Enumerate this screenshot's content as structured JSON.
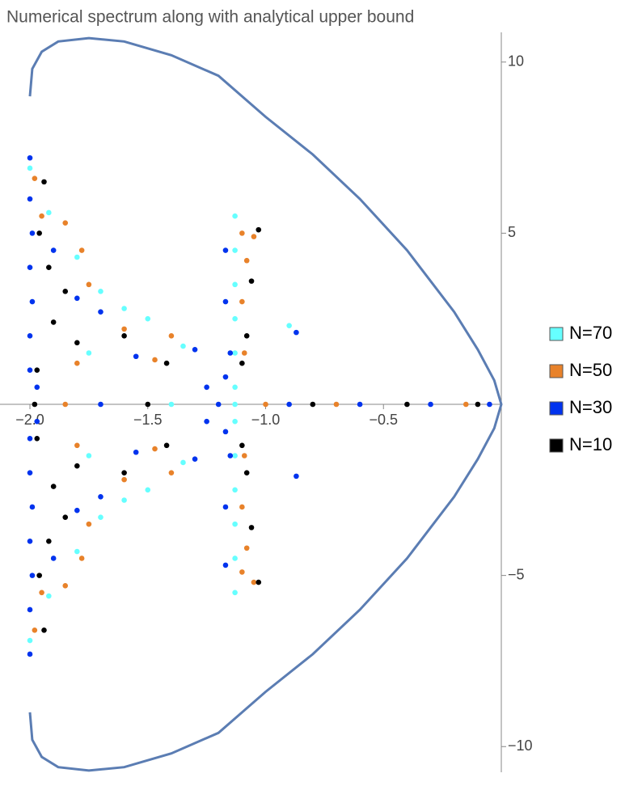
{
  "chart_data": {
    "type": "scatter",
    "title": "Numerical spectrum along with analytical upper bound",
    "xlim": [
      -2.127,
      0
    ],
    "ylim": [
      -10.75,
      10.75
    ],
    "xticks": [
      {
        "value": -2,
        "label": "−2.0"
      },
      {
        "value": -1.5,
        "label": "−1.5"
      },
      {
        "value": -1,
        "label": "−1.0"
      },
      {
        "value": -0.5,
        "label": "−0.5"
      }
    ],
    "yticks": [
      10,
      5,
      {
        "value": -5,
        "label": "−5"
      },
      {
        "value": -10,
        "label": "−10"
      }
    ],
    "bound": {
      "color": "#5b7db3",
      "x": [
        -2,
        -1.99,
        -1.95,
        -1.88,
        -1.75,
        -1.6,
        -1.4,
        -1.2,
        -1.0,
        -0.8,
        -0.6,
        -0.4,
        -0.2,
        -0.1,
        -0.03,
        0,
        -0.03,
        -0.1,
        -0.2,
        -0.4,
        -0.6,
        -0.8,
        -1.0,
        -1.2,
        -1.4,
        -1.6,
        -1.75,
        -1.88,
        -1.95,
        -1.99,
        -2
      ],
      "y": [
        9,
        9.8,
        10.3,
        10.6,
        10.7,
        10.6,
        10.2,
        9.6,
        8.4,
        7.3,
        6.0,
        4.5,
        2.7,
        1.6,
        0.7,
        0,
        -0.7,
        -1.6,
        -2.7,
        -4.5,
        -6.0,
        -7.3,
        -8.4,
        -9.6,
        -10.2,
        -10.6,
        -10.7,
        -10.6,
        -10.3,
        -9.8,
        -9
      ]
    },
    "series": [
      {
        "name": "N=70",
        "color": "#66ffff",
        "x": [
          -2.0,
          -2.0,
          -1.92,
          -1.92,
          -1.8,
          -1.8,
          -1.7,
          -1.7,
          -1.6,
          -1.6,
          -1.5,
          -1.5,
          -1.35,
          -1.35,
          -1.13,
          -1.13,
          -1.13,
          -1.13,
          -1.13,
          -1.13,
          -1.13,
          -1.13,
          -1.13,
          -1.13,
          -1.13,
          -1.13,
          -0.9,
          -1.75,
          -1.75,
          -1.4,
          -1.13
        ],
        "y": [
          6.9,
          -6.9,
          5.6,
          -5.6,
          4.3,
          -4.3,
          3.3,
          -3.3,
          2.8,
          -2.8,
          2.5,
          -2.5,
          1.7,
          -1.7,
          5.5,
          -5.5,
          4.5,
          -4.5,
          3.5,
          -3.5,
          2.5,
          -2.5,
          1.5,
          -1.5,
          0.5,
          -0.5,
          2.3,
          1.5,
          -1.5,
          0,
          0
        ]
      },
      {
        "name": "N=50",
        "color": "#e8822a",
        "x": [
          -1.98,
          -1.98,
          -1.95,
          -1.95,
          -1.85,
          -1.85,
          -1.78,
          -1.78,
          -1.75,
          -1.75,
          -1.6,
          -1.6,
          -1.4,
          -1.4,
          -1.47,
          -1.47,
          -1.1,
          -1.1,
          -1.08,
          -1.08,
          -1.1,
          -1.1,
          -1.09,
          -1.09,
          -1.05,
          -1.05,
          -1.8,
          -1.8,
          -1.0,
          -0.7,
          -0.15,
          -1.85
        ],
        "y": [
          6.6,
          -6.6,
          5.5,
          -5.5,
          5.3,
          -5.3,
          4.5,
          -4.5,
          3.5,
          -3.5,
          2.2,
          -2.2,
          2.0,
          -2.0,
          1.3,
          -1.3,
          5.0,
          -4.9,
          4.2,
          -4.2,
          3.0,
          -3.0,
          1.5,
          -1.5,
          4.9,
          -5.2,
          1.2,
          -1.2,
          0,
          0,
          0,
          0
        ]
      },
      {
        "name": "N=30",
        "color": "#0033ee",
        "x": [
          -2.0,
          -2.0,
          -2.0,
          -2.0,
          -1.99,
          -1.99,
          -2.0,
          -2.0,
          -1.99,
          -1.99,
          -2.0,
          -2.0,
          -2.0,
          -2.0,
          -1.97,
          -1.97,
          -1.9,
          -1.9,
          -1.8,
          -1.8,
          -1.7,
          -1.7,
          -1.55,
          -1.55,
          -1.3,
          -1.3,
          -1.15,
          -1.15,
          -1.17,
          -1.17,
          -1.17,
          -1.17,
          -1.17,
          -1.17,
          -0.87,
          -0.87,
          -1.25,
          -1.25,
          -1.2,
          -0.9,
          -0.6,
          -0.3,
          -1.7,
          -0.05
        ],
        "y": [
          7.2,
          -7.3,
          6.0,
          -6.0,
          5.0,
          -5.0,
          4.0,
          -4.0,
          3.0,
          -3.0,
          2.0,
          -2.0,
          1.0,
          -1.0,
          0.5,
          -0.5,
          4.5,
          -4.5,
          3.1,
          -3.1,
          2.7,
          -2.7,
          1.4,
          -1.4,
          1.6,
          -1.6,
          1.5,
          -1.5,
          4.5,
          -4.7,
          3.0,
          -3.0,
          0.8,
          -0.8,
          2.1,
          -2.1,
          0.5,
          -0.5,
          0,
          0,
          0,
          0,
          0,
          0
        ]
      },
      {
        "name": "N=10",
        "color": "#000000",
        "x": [
          -1.94,
          -1.94,
          -1.92,
          -1.92,
          -1.85,
          -1.85,
          -1.9,
          -1.9,
          -1.8,
          -1.8,
          -1.6,
          -1.6,
          -1.42,
          -1.42,
          -1.03,
          -1.03,
          -1.06,
          -1.06,
          -1.1,
          -1.1,
          -1.08,
          -1.08,
          -0.8,
          -0.4,
          -1.5,
          -1.98,
          -0.1,
          -1.97,
          -1.97,
          -1.96,
          -1.96
        ],
        "y": [
          6.5,
          -6.6,
          4.0,
          -4.0,
          3.3,
          -3.3,
          2.4,
          -2.4,
          1.8,
          -1.8,
          2.0,
          -2.0,
          1.2,
          -1.2,
          5.1,
          -5.2,
          3.6,
          -3.6,
          1.2,
          -1.2,
          2.0,
          -2.0,
          0,
          0,
          0,
          0,
          0,
          1.0,
          -1.0,
          5.0,
          -5.0
        ]
      }
    ]
  }
}
